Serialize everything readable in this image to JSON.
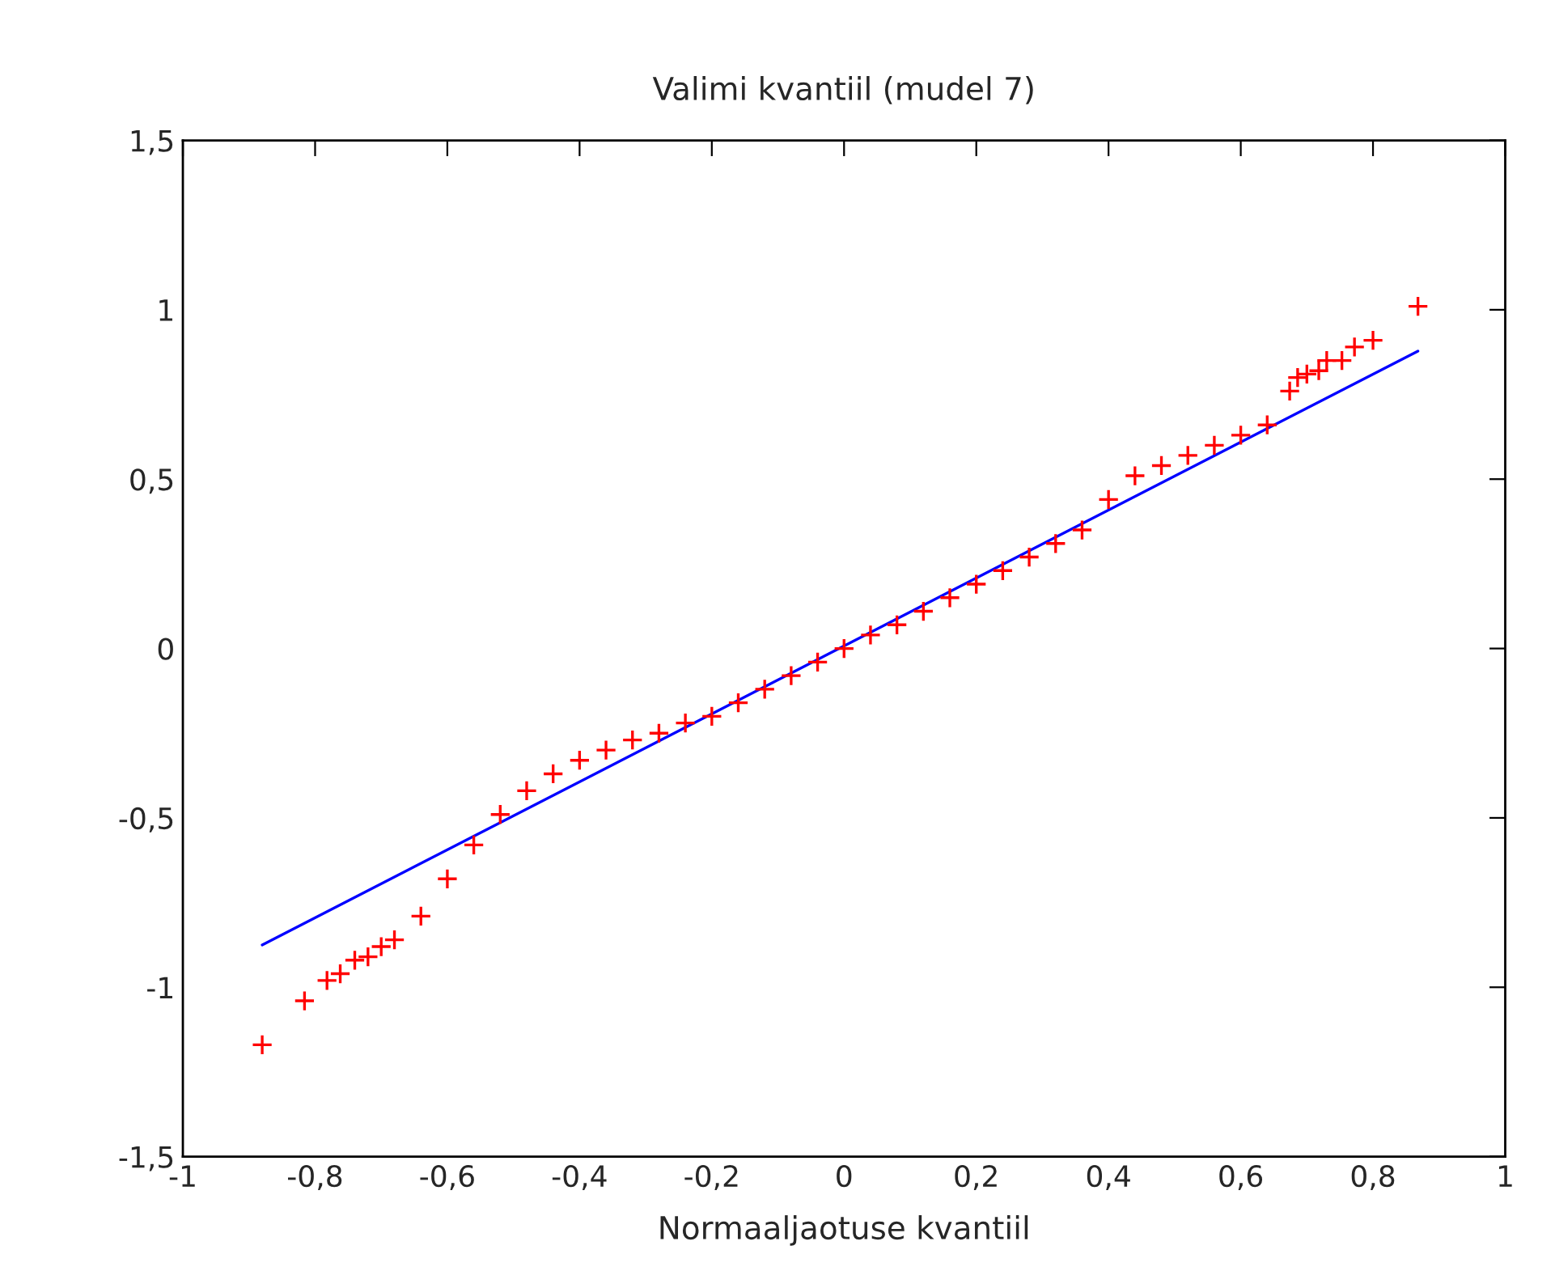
{
  "chart_data": {
    "type": "scatter",
    "title": "Valimi kvantiil (mudel 7)",
    "xlabel": "Normaaljaotuse kvantiil",
    "xlim": [
      -1,
      1
    ],
    "ylim": [
      -1.5,
      1.5
    ],
    "xticks": [
      -1,
      {
        "value": -0.8,
        "label": "-0,8"
      },
      {
        "value": -0.6,
        "label": "-0,6"
      },
      {
        "value": -0.4,
        "label": "-0,4"
      },
      {
        "value": -0.2,
        "label": "-0,2"
      },
      0,
      {
        "value": 0.2,
        "label": "0,2"
      },
      {
        "value": 0.4,
        "label": "0,4"
      },
      {
        "value": 0.6,
        "label": "0,6"
      },
      {
        "value": 0.8,
        "label": "0,8"
      },
      1
    ],
    "yticks": [
      {
        "value": -1.5,
        "label": "-1,5"
      },
      -1,
      {
        "value": -0.5,
        "label": "-0,5"
      },
      0,
      {
        "value": 0.5,
        "label": "0,5"
      },
      1,
      {
        "value": 1.5,
        "label": "1,5"
      }
    ],
    "grid": false,
    "legend": false,
    "series": [
      {
        "marker": "cross",
        "color": "#ff0000",
        "x": [
          -0.88,
          -0.816,
          -0.782,
          -0.762,
          -0.74,
          -0.72,
          -0.7,
          -0.68,
          -0.64,
          -0.6,
          -0.56,
          -0.52,
          -0.48,
          -0.44,
          -0.4,
          -0.36,
          -0.32,
          -0.28,
          -0.24,
          -0.2,
          -0.16,
          -0.12,
          -0.08,
          -0.04,
          0,
          0.04,
          0.08,
          0.12,
          0.16,
          0.2,
          0.24,
          0.28,
          0.32,
          0.36,
          0.4,
          0.44,
          0.48,
          0.52,
          0.56,
          0.6,
          0.64,
          0.674,
          0.686,
          0.7,
          0.718,
          0.73,
          0.753,
          0.772,
          0.8,
          0.868
        ],
        "values": [
          -1.17,
          -1.04,
          -0.98,
          -0.96,
          -0.92,
          -0.91,
          -0.88,
          -0.86,
          -0.79,
          -0.68,
          -0.58,
          -0.49,
          -0.42,
          -0.37,
          -0.33,
          -0.3,
          -0.27,
          -0.25,
          -0.22,
          -0.2,
          -0.16,
          -0.12,
          -0.08,
          -0.04,
          0,
          0.04,
          0.07,
          0.11,
          0.15,
          0.19,
          0.23,
          0.27,
          0.31,
          0.35,
          0.44,
          0.51,
          0.54,
          0.57,
          0.6,
          0.63,
          0.66,
          0.76,
          0.8,
          0.81,
          0.82,
          0.85,
          0.85,
          0.89,
          0.91,
          1.01
        ]
      },
      {
        "type": "line",
        "line_style": "solid",
        "color": "#0000ff",
        "x": [
          -0.88,
          0.868
        ],
        "values": [
          -0.875,
          0.878
        ]
      }
    ]
  }
}
